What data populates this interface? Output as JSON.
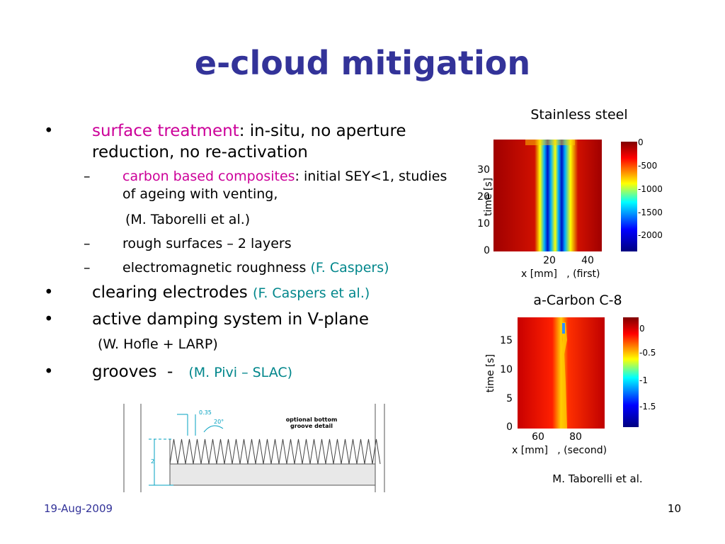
{
  "title": "e-cloud mitigation",
  "bullets": [
    {
      "highlight": "surface treatment",
      "text": ": in-situ, no aperture reduction, no re-activation",
      "sub": [
        {
          "highlight": "carbon based composites",
          "text": ": initial SEY<1, studies of ageing with venting,",
          "ref": "(M. Taborelli et al.)"
        },
        {
          "text": "rough surfaces – 2 layers"
        },
        {
          "text": "electromagnetic roughness",
          "ref": "(F. Caspers)"
        }
      ]
    },
    {
      "text": "clearing electrodes",
      "ref": "(F. Caspers et al.)"
    },
    {
      "text": "active damping system in V-plane",
      "ref": "(W. Hofle + LARP)"
    },
    {
      "text": "grooves  -",
      "ref": "(M. Pivi – SLAC)"
    }
  ],
  "figures": [
    {
      "label": "Stainless steel",
      "ylabel": "time [s]",
      "yticks": [
        "0",
        "10",
        "20",
        "30"
      ],
      "xticks": [
        "20",
        "40"
      ],
      "xlabel": "x [mm]   , (first)",
      "colorbar": [
        "0",
        "-500",
        "-1000",
        "-1500",
        "-2000"
      ]
    },
    {
      "label": "a-Carbon C-8",
      "ylabel": "time [s]",
      "yticks": [
        "0",
        "5",
        "10",
        "15"
      ],
      "xticks": [
        "60",
        "80"
      ],
      "xlabel": "x [mm]   , (second)",
      "colorbar": [
        "0",
        "-0.5",
        "-1",
        "-1.5"
      ]
    }
  ],
  "credit": "M. Taborelli et al.",
  "groove": {
    "pitch": "0.35",
    "angle": "20°",
    "note": "optional bottom groove detail",
    "depth": "2"
  },
  "footer": {
    "date": "19-Aug-2009",
    "page": "10"
  }
}
